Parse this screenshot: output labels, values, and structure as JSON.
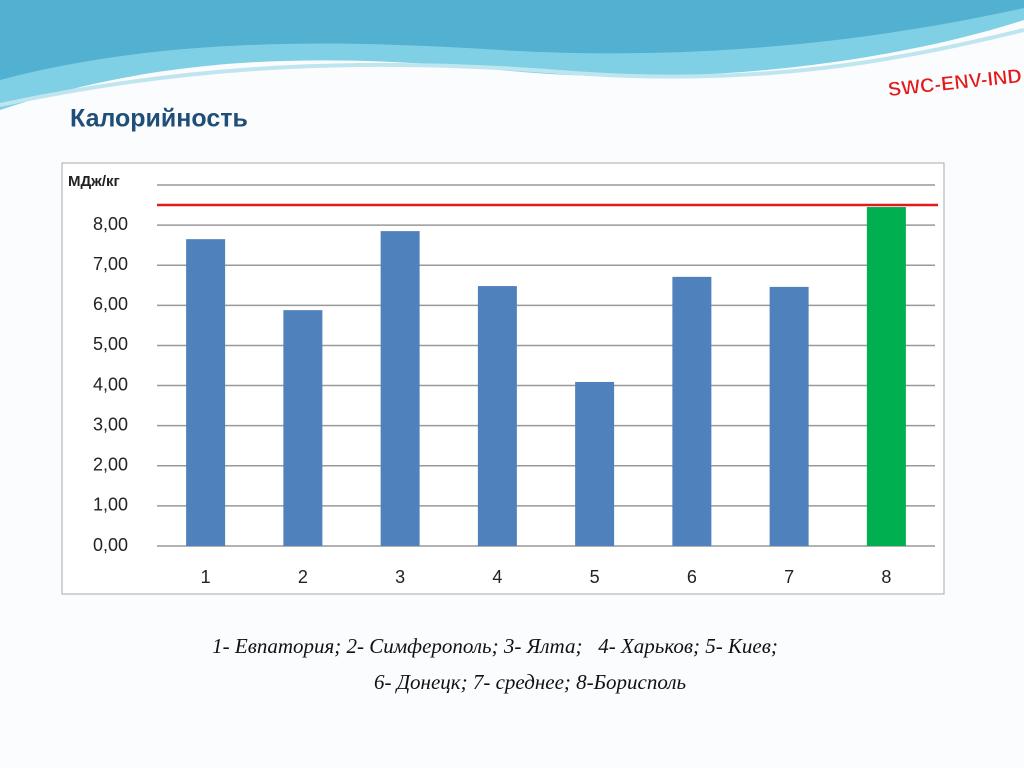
{
  "header": {
    "title": "Калорийность",
    "logo": "SWC-ENV-IND"
  },
  "chart_data": {
    "type": "bar",
    "y_label": "МДж/кг",
    "categories": [
      "1",
      "2",
      "3",
      "4",
      "5",
      "6",
      "7",
      "8"
    ],
    "values": [
      7.65,
      5.88,
      7.85,
      6.48,
      4.09,
      6.71,
      6.46,
      8.45
    ],
    "colors": [
      "#4f81bd",
      "#4f81bd",
      "#4f81bd",
      "#4f81bd",
      "#4f81bd",
      "#4f81bd",
      "#4f81bd",
      "#00b050"
    ],
    "reference_line": {
      "value": 8.5,
      "color": "#e31a1c"
    },
    "ylim": [
      0,
      9
    ],
    "yticks": [
      {
        "value": 0,
        "label": "0,00"
      },
      {
        "value": 1,
        "label": "1,00"
      },
      {
        "value": 2,
        "label": "2,00"
      },
      {
        "value": 3,
        "label": "3,00"
      },
      {
        "value": 4,
        "label": "4,00"
      },
      {
        "value": 5,
        "label": "5,00"
      },
      {
        "value": 6,
        "label": "6,00"
      },
      {
        "value": 7,
        "label": "7,00"
      },
      {
        "value": 8,
        "label": "8,00"
      }
    ],
    "grid": true
  },
  "caption": [
    "1- Евпатория; 2- Симферополь; 3- Ялта;   4- Харьков; 5- Киев;",
    "6- Донецк; 7- среднее; 8-Борисполь"
  ]
}
